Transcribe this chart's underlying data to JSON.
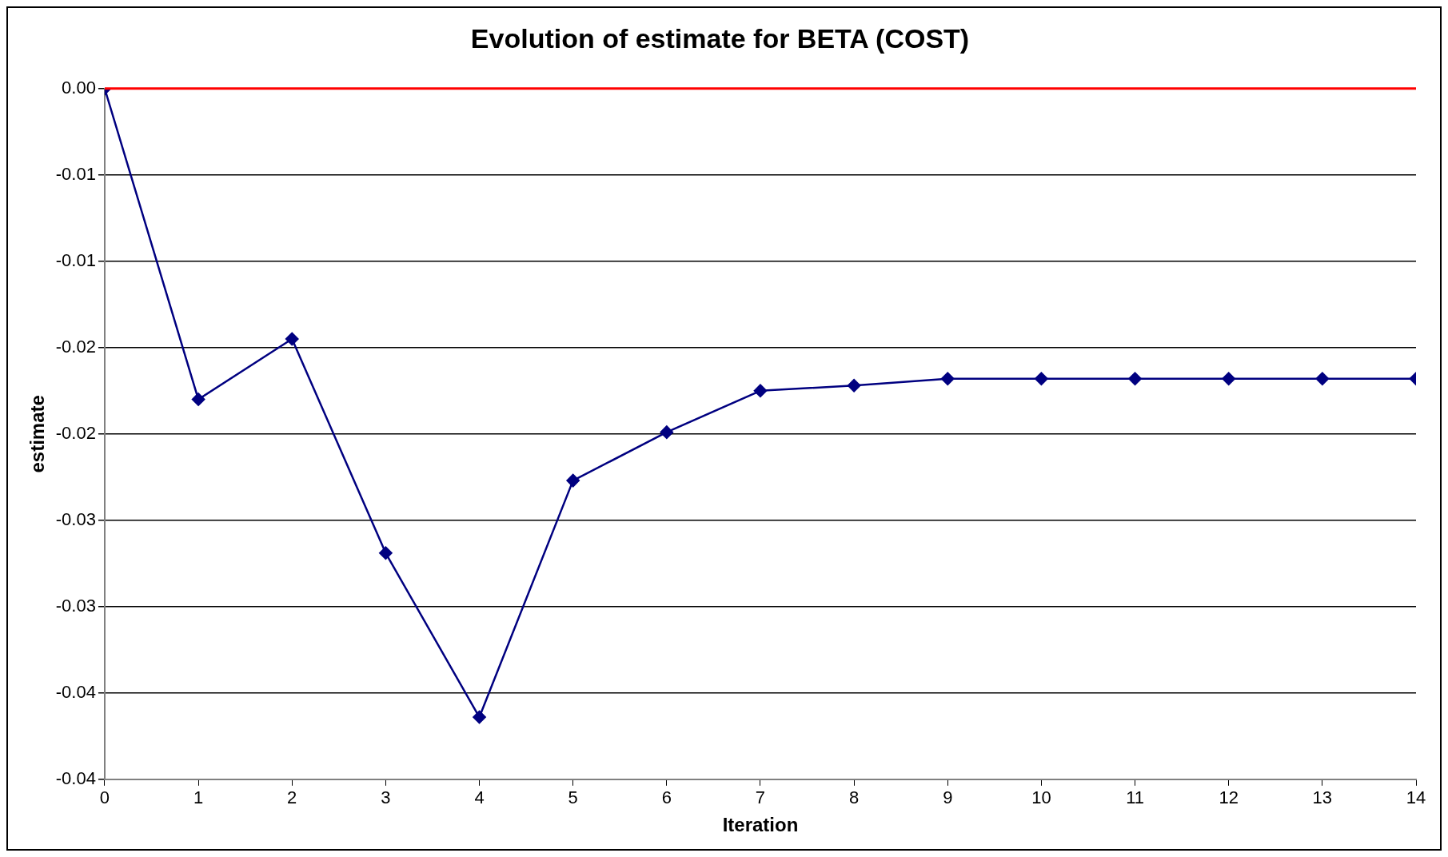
{
  "chart_data": {
    "type": "line",
    "title": "Evolution of estimate for BETA (COST)",
    "xlabel": "Iteration",
    "ylabel": "estimate",
    "x": [
      0,
      1,
      2,
      3,
      4,
      5,
      6,
      7,
      8,
      9,
      10,
      11,
      12,
      13,
      14
    ],
    "series": [
      {
        "color": "#000080",
        "values": [
          0,
          -0.018,
          -0.0145,
          -0.0269,
          -0.0364,
          -0.0227,
          -0.0199,
          -0.0175,
          -0.0172,
          -0.0168,
          -0.0168,
          -0.0168,
          -0.0168,
          -0.0168,
          -0.0168
        ]
      }
    ],
    "xlim": [
      0,
      14
    ],
    "xticks": [
      0,
      1,
      2,
      3,
      4,
      5,
      6,
      7,
      8,
      9,
      10,
      11,
      12,
      13,
      14
    ],
    "ylim": [
      -0.04,
      0
    ],
    "yticks": [
      {
        "value": 0,
        "label": "0.00"
      },
      {
        "value": -0.005,
        "label": "-0.01"
      },
      {
        "value": -0.01,
        "label": "-0.01"
      },
      {
        "value": -0.015,
        "label": "-0.02"
      },
      {
        "value": -0.02,
        "label": "-0.02"
      },
      {
        "value": -0.025,
        "label": "-0.03"
      },
      {
        "value": -0.03,
        "label": "-0.03"
      },
      {
        "value": -0.035,
        "label": "-0.04"
      },
      {
        "value": -0.04,
        "label": "-0.04"
      }
    ],
    "ref_lines": [
      {
        "axis": "y",
        "value": 0,
        "color": "#ff0000"
      }
    ],
    "grid": "y",
    "legend": false,
    "marker": "diamond",
    "line_style": "solid"
  }
}
